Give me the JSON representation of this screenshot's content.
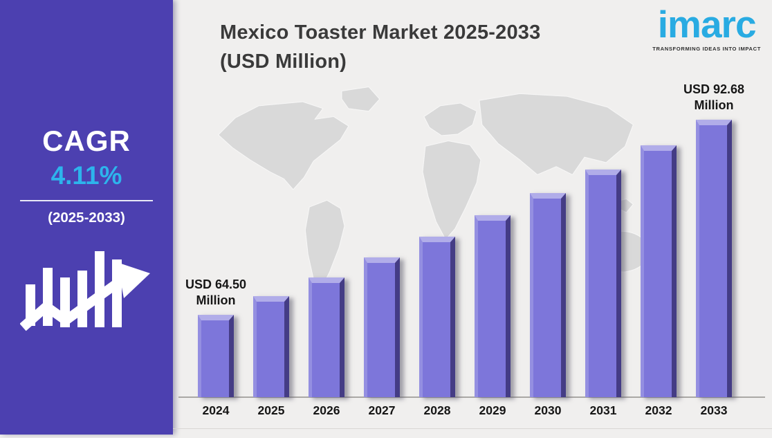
{
  "colors": {
    "background": "#f0efee",
    "sidebar_bg": "#4c40b0",
    "accent_blue": "#29abe2",
    "cagr_value_color": "#2db4ec",
    "bar_face": "#7d76da",
    "map_fill": "#d9d9d9",
    "title_color": "#3a3a3a"
  },
  "sidebar": {
    "cagr_label": "CAGR",
    "cagr_value": "4.11%",
    "cagr_period": "(2025-2033)"
  },
  "header": {
    "title_line1": "Mexico Toaster Market 2025-2033",
    "title_line2": "(USD Million)"
  },
  "logo": {
    "wordmark": "imarc",
    "tagline": "TRANSFORMING IDEAS INTO IMPACT"
  },
  "chart_data": {
    "type": "bar",
    "title": "Mexico Toaster Market 2025-2033 (USD Million)",
    "unit": "USD Million",
    "categories": [
      "2024",
      "2025",
      "2026",
      "2027",
      "2028",
      "2029",
      "2030",
      "2031",
      "2032",
      "2033"
    ],
    "values": [
      64.5,
      67.15,
      69.91,
      72.78,
      75.77,
      78.89,
      82.13,
      85.5,
      89.02,
      92.68
    ],
    "value_labels_shown": [
      {
        "category": "2024",
        "line1": "USD 64.50",
        "line2": "Million"
      },
      {
        "category": "2033",
        "line1": "USD 92.68",
        "line2": "Million"
      }
    ],
    "cagr": "4.11%",
    "cagr_period": "2025-2033",
    "ylim": [
      52.6,
      95
    ],
    "grid": false,
    "legend": false,
    "background_motif": "world-map"
  }
}
